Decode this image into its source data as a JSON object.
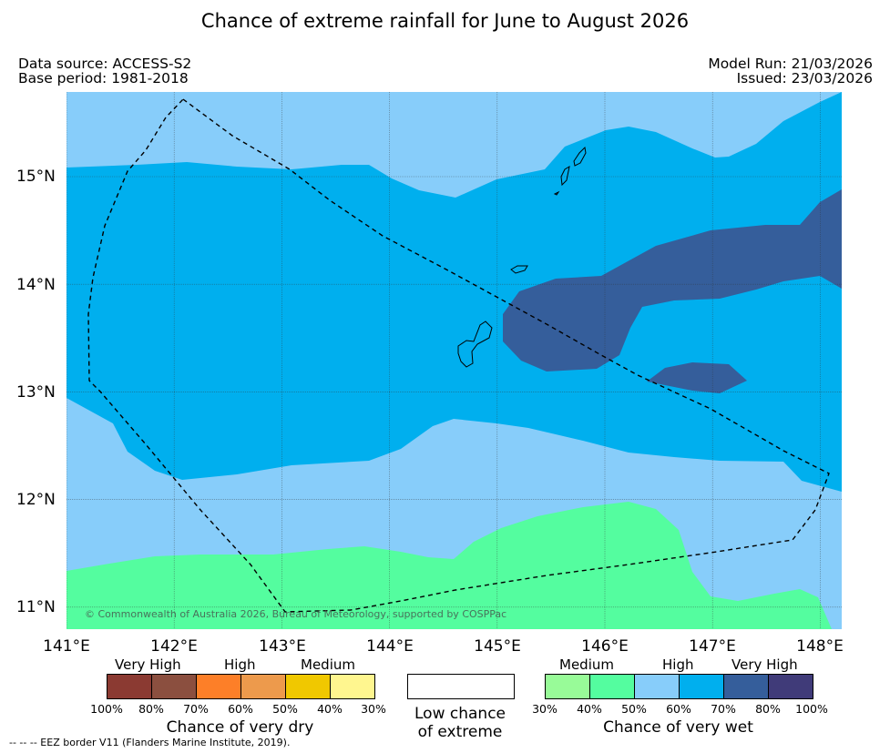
{
  "title": "Chance of extreme rainfall for June to August 2026",
  "data_source": "Data source: ACCESS-S2",
  "base_period": "Base period: 1981-2018",
  "model_run": "Model Run: 21/03/2026",
  "issued": "Issued: 23/03/2026",
  "map": {
    "lon_ticks": [
      "141°E",
      "142°E",
      "143°E",
      "144°E",
      "145°E",
      "146°E",
      "147°E",
      "148°E"
    ],
    "lat_ticks": [
      "15°N",
      "14°N",
      "13°N",
      "12°N",
      "11°N"
    ],
    "lon_range": [
      140.75,
      148.15
    ],
    "lat_range": [
      10.8,
      15.75
    ],
    "copyright": "© Commonwealth of Australia 2026, Bureau of Meteorology, supported by COSPPac",
    "colors": {
      "wet_30_40": "#98fb98",
      "wet_40_50": "#54fd9f",
      "wet_50_60": "#87cdfa",
      "wet_60_70": "#00afee",
      "wet_70_80": "#355e9b",
      "wet_80_100": "#403b79"
    }
  },
  "legend": {
    "dry": {
      "headers": [
        "Very High",
        "High",
        "Medium"
      ],
      "ticks": [
        "100%",
        "80%",
        "70%",
        "60%",
        "50%",
        "40%",
        "30%"
      ],
      "colors": [
        "#8b3a32",
        "#8b4f3f",
        "#fd7f28",
        "#ed9a4c",
        "#f0c800",
        "#fff68f"
      ],
      "caption": "Chance of very dry"
    },
    "low": {
      "line1": "Low chance",
      "line2": "of extreme"
    },
    "wet": {
      "headers": [
        "Medium",
        "High",
        "Very High"
      ],
      "ticks": [
        "30%",
        "40%",
        "50%",
        "60%",
        "70%",
        "80%",
        "100%"
      ],
      "colors": [
        "#98fb98",
        "#54fd9f",
        "#87cdfa",
        "#00afee",
        "#355e9b",
        "#403b79"
      ],
      "caption": "Chance of very wet"
    }
  },
  "eez_note": "--  --  -- EEZ border V11 (Flanders Marine Institute, 2019)."
}
